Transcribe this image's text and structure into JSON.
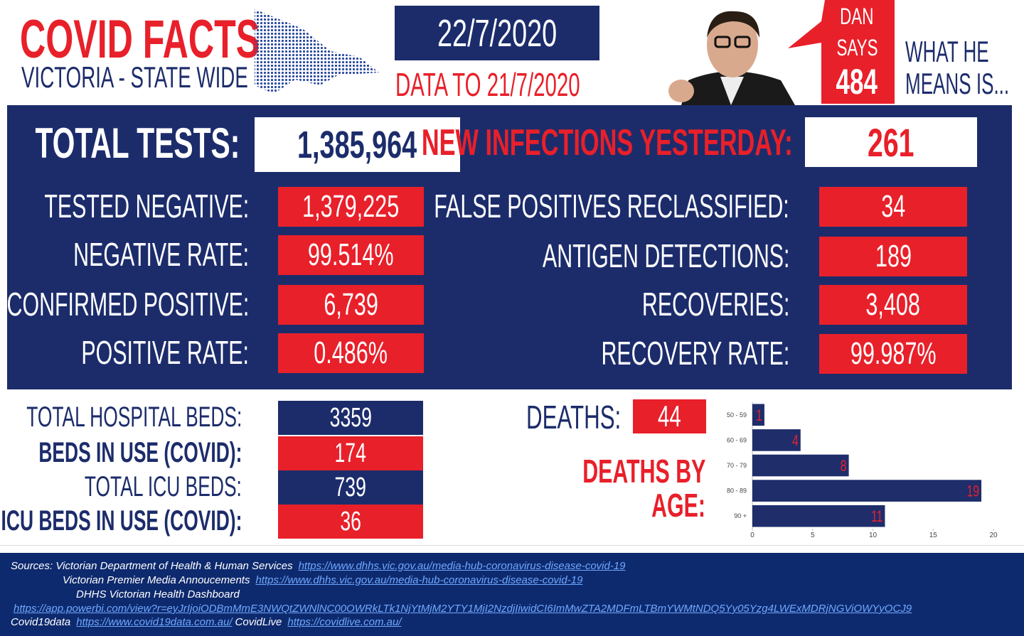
{
  "header": {
    "title": "COVID FACTS",
    "subtitle": "VICTORIA - STATE WIDE",
    "date": "22/7/2020",
    "data_to": "DATA TO 21/7/2020",
    "bubble": [
      "DAN",
      "SAYS",
      "484"
    ],
    "means": [
      "WHAT HE",
      "MEANS IS..."
    ]
  },
  "headline": {
    "total_tests": {
      "label": "TOTAL TESTS:",
      "value": "1,385,964"
    },
    "new_infections": {
      "label": "NEW INFECTIONS YESTERDAY:",
      "value": "261"
    }
  },
  "left_rows": [
    {
      "label": "TESTED NEGATIVE:",
      "value": "1,379,225"
    },
    {
      "label": "NEGATIVE RATE:",
      "value": "99.514%"
    },
    {
      "label": "CONFIRMED POSITIVE:",
      "value": "6,739"
    },
    {
      "label": "POSITIVE RATE:",
      "value": "0.486%"
    }
  ],
  "right_rows": [
    {
      "label": "FALSE POSITIVES RECLASSIFIED:",
      "value": "34"
    },
    {
      "label": "ANTIGEN DETECTIONS:",
      "value": "189"
    },
    {
      "label": "RECOVERIES:",
      "value": "3,408"
    },
    {
      "label": "RECOVERY RATE:",
      "value": "99.987%"
    }
  ],
  "beds": [
    {
      "label": "TOTAL HOSPITAL BEDS:",
      "value": "3359"
    },
    {
      "label": "BEDS IN USE (COVID):",
      "value": "174"
    },
    {
      "label": "TOTAL ICU BEDS:",
      "value": "739"
    },
    {
      "label": "ICU BEDS IN USE (COVID):",
      "value": "36"
    }
  ],
  "deaths": {
    "label": "DEATHS:",
    "value": "44"
  },
  "chart_data": {
    "type": "bar",
    "orientation": "horizontal",
    "title": [
      "DEATHS BY",
      "AGE:"
    ],
    "categories": [
      "50 - 59",
      "60 - 69",
      "70 - 79",
      "80 - 89",
      "90 +"
    ],
    "values": [
      1,
      4,
      8,
      19,
      11
    ],
    "color": "#1f2d6b",
    "label_color": "#e8202a",
    "xlim": [
      0,
      20
    ],
    "xticks": [
      0,
      5,
      10,
      15,
      20
    ]
  },
  "footer": {
    "lines": [
      [
        {
          "text": "Sources: Victorian Department of Health & Human Services"
        },
        {
          "link": "https://www.dhhs.vic.gov.au/media-hub-coronavirus-disease-covid-19"
        }
      ],
      [
        {
          "text": "Victorian Premier Media Annoucements"
        },
        {
          "link": "https://www.dhhs.vic.gov.au/media-hub-coronavirus-disease-covid-19"
        }
      ],
      [
        {
          "text": "DHHS Victorian Health Dashboard"
        }
      ],
      [
        {
          "link": "https://app.powerbi.com/view?r=eyJrIjoiODBmMmE3NWQtZWNlNC00OWRkLTk1NjYtMjM2YTY1MjI2NzdjIiwidCI6ImMwZTA2MDFmLTBmYWMtNDQ5Yy05Yzg4LWExMDRjNGViOWYyOCJ9"
        }
      ],
      [
        {
          "text": "Covid19data"
        },
        {
          "link": "https://www.covid19data.com.au/"
        },
        {
          "text": "CovidLive"
        },
        {
          "link": "https://covidlive.com.au/"
        }
      ]
    ]
  }
}
